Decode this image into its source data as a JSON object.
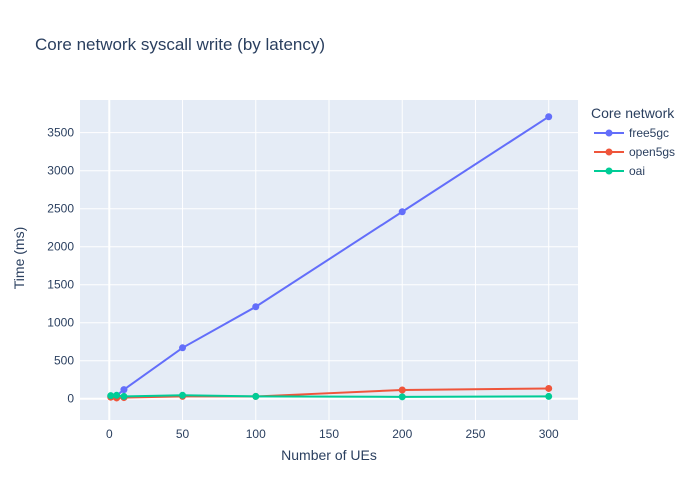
{
  "chart_data": {
    "type": "line",
    "title": "Core network syscall write (by latency)",
    "xlabel": "Number of UEs",
    "ylabel": "Time (ms)",
    "xlim": [
      -20,
      320
    ],
    "ylim": [
      -280,
      3930
    ],
    "x_ticks": [
      0,
      50,
      100,
      150,
      200,
      250,
      300
    ],
    "y_ticks": [
      0,
      500,
      1000,
      1500,
      2000,
      2500,
      3000,
      3500
    ],
    "legend_title": "Core network",
    "legend_position": "right",
    "grid": true,
    "background_color": "#e5ecf6",
    "series": [
      {
        "name": "free5gc",
        "color": "#636efa",
        "x": [
          1,
          5,
          10,
          50,
          100,
          200,
          300
        ],
        "y": [
          30,
          40,
          120,
          670,
          1210,
          2460,
          3710
        ]
      },
      {
        "name": "open5gs",
        "color": "#ef553b",
        "x": [
          1,
          5,
          10,
          50,
          100,
          200,
          300
        ],
        "y": [
          20,
          10,
          15,
          30,
          30,
          115,
          135
        ]
      },
      {
        "name": "oai",
        "color": "#00cc96",
        "x": [
          1,
          5,
          10,
          50,
          100,
          200,
          300
        ],
        "y": [
          40,
          45,
          30,
          45,
          30,
          25,
          30
        ]
      }
    ]
  }
}
